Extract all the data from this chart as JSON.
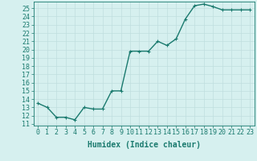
{
  "x": [
    0,
    1,
    2,
    3,
    4,
    5,
    6,
    7,
    8,
    9,
    10,
    11,
    12,
    13,
    14,
    15,
    16,
    17,
    18,
    19,
    20,
    21,
    22,
    23
  ],
  "y": [
    13.5,
    13.0,
    11.8,
    11.8,
    11.5,
    13.0,
    12.8,
    12.8,
    15.0,
    15.0,
    19.8,
    19.8,
    19.8,
    21.0,
    20.5,
    21.3,
    23.7,
    25.3,
    25.5,
    25.2,
    24.8,
    24.8,
    24.8,
    24.8
  ],
  "xlabel": "Humidex (Indice chaleur)",
  "ylabel_ticks": [
    11,
    12,
    13,
    14,
    15,
    16,
    17,
    18,
    19,
    20,
    21,
    22,
    23,
    24,
    25
  ],
  "xlim": [
    -0.5,
    23.5
  ],
  "ylim": [
    10.8,
    25.8
  ],
  "line_color": "#1a7a6e",
  "marker_color": "#1a7a6e",
  "bg_color": "#d6f0ef",
  "grid_color": "#c0dede",
  "xlabel_fontsize": 7,
  "tick_fontsize": 6,
  "line_width": 1.0,
  "marker_size": 2.5
}
